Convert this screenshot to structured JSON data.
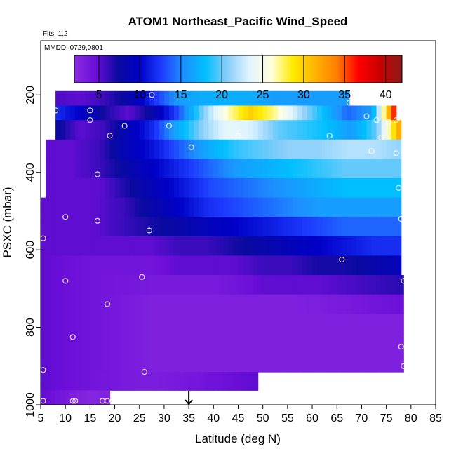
{
  "chart_data": {
    "type": "heatmap",
    "title": "ATOM1 Northeast_Pacific Wind_Speed",
    "notes": [
      "Flts: 1,2",
      "MMDD: 0729,0801"
    ],
    "xlabel": "Latitude (deg N)",
    "ylabel": "PSXC (mbar)",
    "xlim": [
      5,
      85
    ],
    "ylim": [
      1000,
      60
    ],
    "y_reversed": true,
    "x_ticks": [
      5,
      10,
      15,
      20,
      25,
      30,
      35,
      40,
      45,
      50,
      55,
      60,
      65,
      70,
      75,
      80,
      85
    ],
    "y_ticks": [
      200,
      400,
      600,
      800,
      1000
    ],
    "colorbar": {
      "range": [
        2,
        42
      ],
      "ticks": [
        5,
        10,
        15,
        20,
        25,
        30,
        35,
        40
      ],
      "colors": [
        "#8a2be2",
        "#6a0dd8",
        "#0a0aa0",
        "#0000c8",
        "#1e3cff",
        "#1e90ff",
        "#00bfff",
        "#87cefa",
        "#e0f4ff",
        "#ffffe0",
        "#ffec00",
        "#ffb400",
        "#ff8000",
        "#ff0000",
        "#c80000",
        "#8b1a1a"
      ]
    },
    "marker": {
      "x": 35,
      "label": "arrow"
    },
    "layers": [
      {
        "p": 215,
        "x": [
          8,
          67.5
        ],
        "v": [
          5.5,
          5,
          6,
          8,
          12,
          16,
          17,
          17,
          17,
          16,
          16,
          16,
          16
        ]
      },
      {
        "p": 240,
        "x": [
          8,
          77
        ],
        "v": [
          12,
          10,
          7,
          5,
          8,
          13,
          20,
          26,
          30,
          27,
          22,
          18,
          14,
          16,
          38
        ]
      },
      {
        "p": 290,
        "x": [
          8,
          78
        ],
        "v": [
          8,
          5,
          6,
          9,
          12,
          17,
          21,
          24,
          23,
          20,
          19,
          18,
          16,
          20,
          33
        ]
      },
      {
        "p": 340,
        "x": [
          6,
          78
        ],
        "v": [
          5,
          5,
          6,
          9,
          11,
          14,
          17,
          19,
          20,
          21,
          21,
          22,
          22,
          21
        ]
      },
      {
        "p": 390,
        "x": [
          6,
          78
        ],
        "v": [
          5,
          5,
          6,
          8,
          10,
          12,
          14,
          16,
          17,
          18,
          19,
          20,
          20,
          20
        ]
      },
      {
        "p": 440,
        "x": [
          6,
          78
        ],
        "v": [
          5,
          5,
          5,
          7,
          9,
          11,
          13,
          14,
          15,
          16,
          17,
          18,
          18,
          18
        ]
      },
      {
        "p": 490,
        "x": [
          5,
          78
        ],
        "v": [
          5,
          5,
          5,
          6,
          8,
          10,
          12,
          13,
          14,
          15,
          16,
          16,
          16,
          16
        ]
      },
      {
        "p": 540,
        "x": [
          5,
          78
        ],
        "v": [
          5,
          5,
          5,
          6,
          7,
          8,
          9,
          10,
          11,
          12,
          13,
          14,
          14,
          14
        ]
      },
      {
        "p": 590,
        "x": [
          5,
          78
        ],
        "v": [
          5,
          5,
          5,
          5,
          5,
          6,
          6,
          7,
          8,
          9,
          10,
          11,
          12,
          12
        ]
      },
      {
        "p": 640,
        "x": [
          5,
          78
        ],
        "v": [
          5,
          4.5,
          4,
          4,
          4,
          5,
          5,
          5,
          6,
          6,
          7,
          7,
          8,
          9
        ]
      },
      {
        "p": 690,
        "x": [
          5,
          78.5
        ],
        "v": [
          5,
          4.5,
          4,
          3.8,
          3.5,
          3.5,
          3.5,
          4,
          5,
          5,
          5,
          5.5,
          6,
          6.5
        ]
      },
      {
        "p": 740,
        "x": [
          5,
          78.5
        ],
        "v": [
          5,
          4.5,
          4,
          3.5,
          3,
          3,
          3,
          3,
          3,
          3,
          3.2,
          3.5,
          4,
          4.5
        ]
      },
      {
        "p": 790,
        "x": [
          5,
          78.5
        ],
        "v": [
          5,
          4.5,
          4,
          3.5,
          3,
          3,
          3,
          3,
          3,
          3,
          3,
          3,
          3,
          3
        ]
      },
      {
        "p": 840,
        "x": [
          5,
          78.5
        ],
        "v": [
          5,
          4.5,
          4,
          3.5,
          3,
          3,
          3,
          3,
          3,
          3,
          3,
          3,
          3,
          3
        ]
      },
      {
        "p": 890,
        "x": [
          5,
          78.5
        ],
        "v": [
          5,
          4.5,
          4,
          3.5,
          3,
          3,
          3,
          3,
          3,
          3,
          3,
          3,
          3,
          3
        ]
      },
      {
        "p": 940,
        "x": [
          5,
          49
        ],
        "v": [
          5,
          4.5,
          4,
          3.5,
          3.2,
          3.5,
          4,
          4.5,
          5
        ]
      },
      {
        "p": 985,
        "x": [
          5,
          19
        ],
        "v": [
          5,
          4,
          3,
          2.5,
          3
        ]
      }
    ],
    "points": [
      [
        27.5,
        200
      ],
      [
        8,
        240
      ],
      [
        15,
        240
      ],
      [
        15,
        265
      ],
      [
        22,
        280
      ],
      [
        31,
        280
      ],
      [
        19,
        305
      ],
      [
        45,
        305
      ],
      [
        63.5,
        305
      ],
      [
        67.5,
        220
      ],
      [
        71,
        255
      ],
      [
        73,
        265
      ],
      [
        75.5,
        270
      ],
      [
        77,
        265
      ],
      [
        74,
        310
      ],
      [
        72,
        345
      ],
      [
        77,
        350
      ],
      [
        35.5,
        335
      ],
      [
        16.5,
        405
      ],
      [
        10,
        515
      ],
      [
        16.5,
        525
      ],
      [
        27,
        550
      ],
      [
        5.5,
        570
      ],
      [
        77.5,
        440
      ],
      [
        78,
        520
      ],
      [
        66,
        625
      ],
      [
        25.5,
        670
      ],
      [
        10,
        680
      ],
      [
        78.5,
        680
      ],
      [
        18.5,
        740
      ],
      [
        11.5,
        825
      ],
      [
        78,
        850
      ],
      [
        78.5,
        900
      ],
      [
        5.5,
        910
      ],
      [
        26,
        915
      ],
      [
        5.5,
        990
      ],
      [
        11.5,
        990
      ],
      [
        12,
        990
      ],
      [
        17.5,
        990
      ],
      [
        18.5,
        990
      ]
    ]
  }
}
